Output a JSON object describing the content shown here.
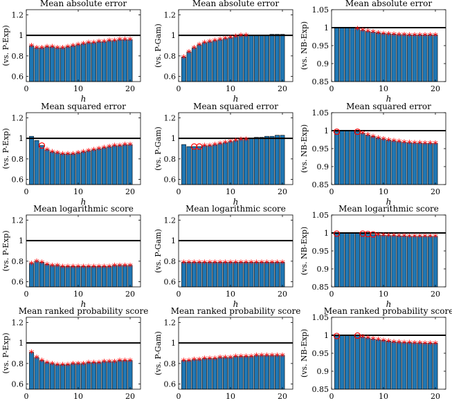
{
  "figure": {
    "x_axis_label": "h",
    "bar_color": "#1f77b4",
    "marker_color": "#ff0000",
    "reference_line_color": "#000000"
  },
  "chart_data": [
    {
      "type": "bar",
      "title": "Mean absolute error",
      "ylabel": "(vs. P-Exp)",
      "xlabel": "h",
      "xlim": [
        0,
        22
      ],
      "ylim": [
        0.55,
        1.25
      ],
      "yticks": [
        0.6,
        0.8,
        1,
        1.2
      ],
      "ytick_labels": [
        "0.6",
        "0.8",
        "1",
        "1.2"
      ],
      "xticks": [
        0,
        10,
        20
      ],
      "xtick_labels": [
        "0",
        "10",
        "20"
      ],
      "reference_line": 1,
      "x": [
        1,
        2,
        3,
        4,
        5,
        6,
        7,
        8,
        9,
        10,
        11,
        12,
        13,
        14,
        15,
        16,
        17,
        18,
        19,
        20
      ],
      "values": [
        0.9,
        0.88,
        0.88,
        0.89,
        0.89,
        0.88,
        0.88,
        0.89,
        0.9,
        0.91,
        0.92,
        0.93,
        0.93,
        0.94,
        0.94,
        0.95,
        0.95,
        0.96,
        0.96,
        0.96
      ],
      "stars": [
        1,
        2,
        3,
        4,
        5,
        6,
        7,
        8,
        9,
        10,
        11,
        12,
        13,
        14,
        15,
        16,
        17,
        18,
        19,
        20
      ],
      "circles": []
    },
    {
      "type": "bar",
      "title": "Mean absolute error",
      "ylabel": "(vs. P-Gam)",
      "xlabel": "h",
      "xlim": [
        0,
        22
      ],
      "ylim": [
        0.55,
        1.25
      ],
      "yticks": [
        0.6,
        0.8,
        1,
        1.2
      ],
      "ytick_labels": [
        "0.6",
        "0.8",
        "1",
        "1.2"
      ],
      "xticks": [
        0,
        10,
        20
      ],
      "xtick_labels": [
        "0",
        "10",
        "20"
      ],
      "reference_line": 1,
      "x": [
        1,
        2,
        3,
        4,
        5,
        6,
        7,
        8,
        9,
        10,
        11,
        12,
        13,
        14,
        15,
        16,
        17,
        18,
        19,
        20
      ],
      "values": [
        0.79,
        0.84,
        0.88,
        0.91,
        0.93,
        0.94,
        0.95,
        0.96,
        0.97,
        0.98,
        0.99,
        1.0,
        1.0,
        1.0,
        1.0,
        1.0,
        1.0,
        1.01,
        1.01,
        1.01
      ],
      "stars": [
        1,
        2,
        3,
        4,
        5,
        6,
        7,
        8,
        9,
        10,
        11,
        12,
        13
      ],
      "circles": []
    },
    {
      "type": "bar",
      "title": "Mean absolute error",
      "ylabel": "(vs. NB-Exp)",
      "xlabel": "h",
      "xlim": [
        0,
        22
      ],
      "ylim": [
        0.85,
        1.05
      ],
      "yticks": [
        0.85,
        0.9,
        0.95,
        1,
        1.05
      ],
      "ytick_labels": [
        "0.85",
        "0.9",
        "0.95",
        "1",
        "1.05"
      ],
      "xticks": [
        0,
        10,
        20
      ],
      "xtick_labels": [
        "0",
        "10",
        "20"
      ],
      "reference_line": 1,
      "x": [
        1,
        2,
        3,
        4,
        5,
        6,
        7,
        8,
        9,
        10,
        11,
        12,
        13,
        14,
        15,
        16,
        17,
        18,
        19,
        20
      ],
      "values": [
        1.0,
        1.0,
        1.0,
        1.0,
        0.997,
        0.993,
        0.99,
        0.988,
        0.986,
        0.984,
        0.983,
        0.982,
        0.981,
        0.981,
        0.98,
        0.98,
        0.98,
        0.98,
        0.98,
        0.98
      ],
      "stars": [
        5,
        6,
        7,
        8,
        9,
        10,
        11,
        12,
        13,
        14,
        15,
        16,
        17,
        18,
        19,
        20
      ],
      "circles": []
    },
    {
      "type": "bar",
      "title": "Mean squared error",
      "ylabel": "(vs. P-Exp)",
      "xlabel": "h",
      "xlim": [
        0,
        22
      ],
      "ylim": [
        0.55,
        1.25
      ],
      "yticks": [
        0.6,
        0.8,
        1,
        1.2
      ],
      "ytick_labels": [
        "0.6",
        "0.8",
        "1",
        "1.2"
      ],
      "xticks": [
        0,
        10,
        20
      ],
      "xtick_labels": [
        "0",
        "10",
        "20"
      ],
      "reference_line": 1,
      "x": [
        1,
        2,
        3,
        4,
        5,
        6,
        7,
        8,
        9,
        10,
        11,
        12,
        13,
        14,
        15,
        16,
        17,
        18,
        19,
        20
      ],
      "values": [
        1.02,
        0.98,
        0.93,
        0.89,
        0.87,
        0.86,
        0.85,
        0.85,
        0.85,
        0.86,
        0.87,
        0.88,
        0.89,
        0.9,
        0.91,
        0.92,
        0.93,
        0.93,
        0.94,
        0.94
      ],
      "stars": [
        4,
        5,
        6,
        7,
        8,
        9,
        10,
        11,
        12,
        13,
        14,
        15,
        16,
        17,
        18,
        19,
        20
      ],
      "circles": [
        3
      ]
    },
    {
      "type": "bar",
      "title": "Mean squared error",
      "ylabel": "(vs. P-Gam)",
      "xlabel": "h",
      "xlim": [
        0,
        22
      ],
      "ylim": [
        0.55,
        1.25
      ],
      "yticks": [
        0.6,
        0.8,
        1,
        1.2
      ],
      "ytick_labels": [
        "0.6",
        "0.8",
        "1",
        "1.2"
      ],
      "xticks": [
        0,
        10,
        20
      ],
      "xtick_labels": [
        "0",
        "10",
        "20"
      ],
      "reference_line": 1,
      "x": [
        1,
        2,
        3,
        4,
        5,
        6,
        7,
        8,
        9,
        10,
        11,
        12,
        13,
        14,
        15,
        16,
        17,
        18,
        19,
        20
      ],
      "values": [
        0.94,
        0.92,
        0.92,
        0.92,
        0.93,
        0.93,
        0.94,
        0.95,
        0.96,
        0.97,
        0.98,
        0.99,
        0.99,
        1.0,
        1.01,
        1.01,
        1.02,
        1.02,
        1.03,
        1.03
      ],
      "stars": [
        5,
        6,
        7,
        8,
        9,
        10,
        11,
        12,
        13
      ],
      "circles": [
        3,
        4
      ]
    },
    {
      "type": "bar",
      "title": "Mean squared error",
      "ylabel": "(vs. NB-Exp)",
      "xlabel": "h",
      "xlim": [
        0,
        22
      ],
      "ylim": [
        0.85,
        1.05
      ],
      "yticks": [
        0.85,
        0.9,
        0.95,
        1,
        1.05
      ],
      "ytick_labels": [
        "0.85",
        "0.9",
        "0.95",
        "1",
        "1.05"
      ],
      "xticks": [
        0,
        10,
        20
      ],
      "xtick_labels": [
        "0",
        "10",
        "20"
      ],
      "reference_line": 1,
      "x": [
        1,
        2,
        3,
        4,
        5,
        6,
        7,
        8,
        9,
        10,
        11,
        12,
        13,
        14,
        15,
        16,
        17,
        18,
        19,
        20
      ],
      "values": [
        0.997,
        1.0,
        1.0,
        1.0,
        0.997,
        0.993,
        0.988,
        0.984,
        0.98,
        0.977,
        0.974,
        0.972,
        0.97,
        0.968,
        0.967,
        0.966,
        0.966,
        0.965,
        0.965,
        0.965
      ],
      "stars": [
        6,
        7,
        8,
        9,
        10,
        11,
        12,
        13,
        14,
        15,
        16,
        17,
        18,
        19,
        20
      ],
      "circles": [
        1,
        5
      ]
    },
    {
      "type": "bar",
      "title": "Mean logarithmic score",
      "ylabel": "(vs. P-Exp)",
      "xlabel": "h",
      "xlim": [
        0,
        22
      ],
      "ylim": [
        0.55,
        1.25
      ],
      "yticks": [
        0.6,
        0.8,
        1,
        1.2
      ],
      "ytick_labels": [
        "0.6",
        "0.8",
        "1",
        "1.2"
      ],
      "xticks": [
        0,
        10,
        20
      ],
      "xtick_labels": [
        "0",
        "10",
        "20"
      ],
      "reference_line": 1,
      "x": [
        1,
        2,
        3,
        4,
        5,
        6,
        7,
        8,
        9,
        10,
        11,
        12,
        13,
        14,
        15,
        16,
        17,
        18,
        19,
        20
      ],
      "values": [
        0.78,
        0.8,
        0.79,
        0.77,
        0.76,
        0.76,
        0.75,
        0.75,
        0.75,
        0.75,
        0.75,
        0.75,
        0.75,
        0.75,
        0.75,
        0.75,
        0.76,
        0.76,
        0.76,
        0.76
      ],
      "stars": [
        1,
        2,
        3,
        4,
        5,
        6,
        7,
        8,
        9,
        10,
        11,
        12,
        13,
        14,
        15,
        16,
        17,
        18,
        19,
        20
      ],
      "circles": []
    },
    {
      "type": "bar",
      "title": "Mean logarithmic score",
      "ylabel": "(vs. P-Gam)",
      "xlabel": "h",
      "xlim": [
        0,
        22
      ],
      "ylim": [
        0.55,
        1.25
      ],
      "yticks": [
        0.6,
        0.8,
        1,
        1.2
      ],
      "ytick_labels": [
        "0.6",
        "0.8",
        "1",
        "1.2"
      ],
      "xticks": [
        0,
        10,
        20
      ],
      "xtick_labels": [
        "0",
        "10",
        "20"
      ],
      "reference_line": 1,
      "x": [
        1,
        2,
        3,
        4,
        5,
        6,
        7,
        8,
        9,
        10,
        11,
        12,
        13,
        14,
        15,
        16,
        17,
        18,
        19,
        20
      ],
      "values": [
        0.79,
        0.79,
        0.79,
        0.79,
        0.79,
        0.79,
        0.79,
        0.79,
        0.79,
        0.79,
        0.79,
        0.79,
        0.79,
        0.79,
        0.79,
        0.79,
        0.79,
        0.79,
        0.79,
        0.79
      ],
      "stars": [
        1,
        2,
        3,
        4,
        5,
        6,
        7,
        8,
        9,
        10,
        11,
        12,
        13,
        14,
        15,
        16,
        17,
        18,
        19,
        20
      ],
      "circles": []
    },
    {
      "type": "bar",
      "title": "Mean logarithmic score",
      "ylabel": "(vs. NB-Exp)",
      "xlabel": "h",
      "xlim": [
        0,
        22
      ],
      "ylim": [
        0.85,
        1.05
      ],
      "yticks": [
        0.85,
        0.9,
        0.95,
        1,
        1.05
      ],
      "ytick_labels": [
        "0.85",
        "0.9",
        "0.95",
        "1",
        "1.05"
      ],
      "xticks": [
        0,
        10,
        20
      ],
      "xtick_labels": [
        "0",
        "10",
        "20"
      ],
      "reference_line": 1,
      "x": [
        1,
        2,
        3,
        4,
        5,
        6,
        7,
        8,
        9,
        10,
        11,
        12,
        13,
        14,
        15,
        16,
        17,
        18,
        19,
        20
      ],
      "values": [
        0.998,
        1.0,
        1.0,
        1.0,
        0.999,
        0.998,
        0.997,
        0.996,
        0.995,
        0.994,
        0.993,
        0.993,
        0.992,
        0.992,
        0.991,
        0.991,
        0.991,
        0.991,
        0.991,
        0.991
      ],
      "stars": [
        9,
        10,
        11,
        12,
        13,
        14,
        15,
        16,
        17,
        18,
        19,
        20
      ],
      "circles": [
        1,
        6,
        7,
        8
      ]
    },
    {
      "type": "bar",
      "title": "Mean ranked probability score",
      "ylabel": "(vs. P-Exp)",
      "xlabel": "h",
      "xlim": [
        0,
        22
      ],
      "ylim": [
        0.55,
        1.25
      ],
      "yticks": [
        0.6,
        0.8,
        1,
        1.2
      ],
      "ytick_labels": [
        "0.6",
        "0.8",
        "1",
        "1.2"
      ],
      "xticks": [
        0,
        10,
        20
      ],
      "xtick_labels": [
        "0",
        "10",
        "20"
      ],
      "reference_line": 1,
      "x": [
        1,
        2,
        3,
        4,
        5,
        6,
        7,
        8,
        9,
        10,
        11,
        12,
        13,
        14,
        15,
        16,
        17,
        18,
        19,
        20
      ],
      "values": [
        0.91,
        0.86,
        0.83,
        0.81,
        0.8,
        0.79,
        0.79,
        0.79,
        0.8,
        0.8,
        0.8,
        0.81,
        0.81,
        0.81,
        0.82,
        0.82,
        0.82,
        0.83,
        0.83,
        0.83
      ],
      "stars": [
        1,
        2,
        3,
        4,
        5,
        6,
        7,
        8,
        9,
        10,
        11,
        12,
        13,
        14,
        15,
        16,
        17,
        18,
        19,
        20
      ],
      "circles": []
    },
    {
      "type": "bar",
      "title": "Mean ranked probability score",
      "ylabel": "(vs. P-Gam)",
      "xlabel": "h",
      "xlim": [
        0,
        22
      ],
      "ylim": [
        0.55,
        1.25
      ],
      "yticks": [
        0.6,
        0.8,
        1,
        1.2
      ],
      "ytick_labels": [
        "0.6",
        "0.8",
        "1",
        "1.2"
      ],
      "xticks": [
        0,
        10,
        20
      ],
      "xtick_labels": [
        "0",
        "10",
        "20"
      ],
      "reference_line": 1,
      "x": [
        1,
        2,
        3,
        4,
        5,
        6,
        7,
        8,
        9,
        10,
        11,
        12,
        13,
        14,
        15,
        16,
        17,
        18,
        19,
        20
      ],
      "values": [
        0.83,
        0.83,
        0.84,
        0.84,
        0.85,
        0.85,
        0.85,
        0.86,
        0.86,
        0.86,
        0.87,
        0.87,
        0.87,
        0.87,
        0.88,
        0.88,
        0.88,
        0.88,
        0.88,
        0.88
      ],
      "stars": [
        1,
        2,
        3,
        4,
        5,
        6,
        7,
        8,
        9,
        10,
        11,
        12,
        13,
        14,
        15,
        16,
        17,
        18,
        19,
        20
      ],
      "circles": []
    },
    {
      "type": "bar",
      "title": "Mean ranked probability score",
      "ylabel": "(vs. NB-Exp)",
      "xlabel": "h",
      "xlim": [
        0,
        22
      ],
      "ylim": [
        0.85,
        1.05
      ],
      "yticks": [
        0.85,
        0.9,
        0.95,
        1,
        1.05
      ],
      "ytick_labels": [
        "0.85",
        "0.9",
        "0.95",
        "1",
        "1.05"
      ],
      "xticks": [
        0,
        10,
        20
      ],
      "xtick_labels": [
        "0",
        "10",
        "20"
      ],
      "reference_line": 1,
      "x": [
        1,
        2,
        3,
        4,
        5,
        6,
        7,
        8,
        9,
        10,
        11,
        12,
        13,
        14,
        15,
        16,
        17,
        18,
        19,
        20
      ],
      "values": [
        0.998,
        1.0,
        1.0,
        1.0,
        0.999,
        0.996,
        0.993,
        0.99,
        0.988,
        0.986,
        0.984,
        0.982,
        0.981,
        0.98,
        0.98,
        0.979,
        0.979,
        0.978,
        0.978,
        0.978
      ],
      "stars": [
        6,
        7,
        8,
        9,
        10,
        11,
        12,
        13,
        14,
        15,
        16,
        17,
        18,
        19,
        20
      ],
      "circles": [
        1,
        5
      ]
    }
  ]
}
